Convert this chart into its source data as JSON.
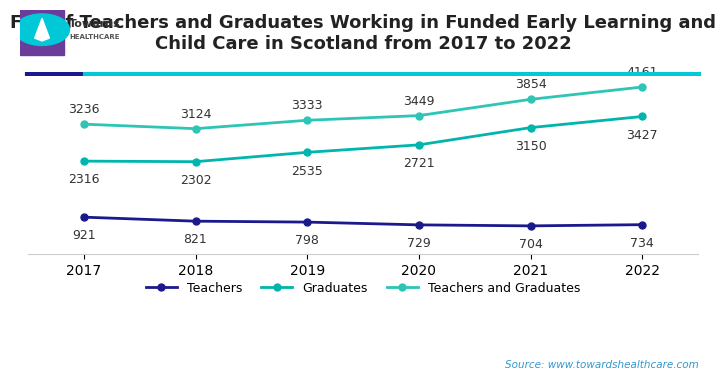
{
  "title": "FTE of Teachers and Graduates Working in Funded Early Learning and\nChild Care in Scotland from 2017 to 2022",
  "years": [
    2017,
    2018,
    2019,
    2020,
    2021,
    2022
  ],
  "teachers": [
    921,
    821,
    798,
    729,
    704,
    734
  ],
  "graduates": [
    2316,
    2302,
    2535,
    2721,
    3150,
    3427
  ],
  "teachers_and_graduates": [
    3236,
    3124,
    3333,
    3449,
    3854,
    4161
  ],
  "color_teachers": "#1a1a8c",
  "color_graduates": "#00b5ad",
  "color_teachers_graduates": "#2ec4b6",
  "source_text": "Source: www.towardshealthcare.com",
  "logo_text_towards": "Towards",
  "logo_text_healthcare": "HEALTHCARE",
  "background_color": "#ffffff",
  "grid_color": "#e0e0e0",
  "ylim": [
    0,
    4600
  ],
  "title_fontsize": 13,
  "label_fontsize": 9,
  "tick_fontsize": 10,
  "legend_fontsize": 9
}
